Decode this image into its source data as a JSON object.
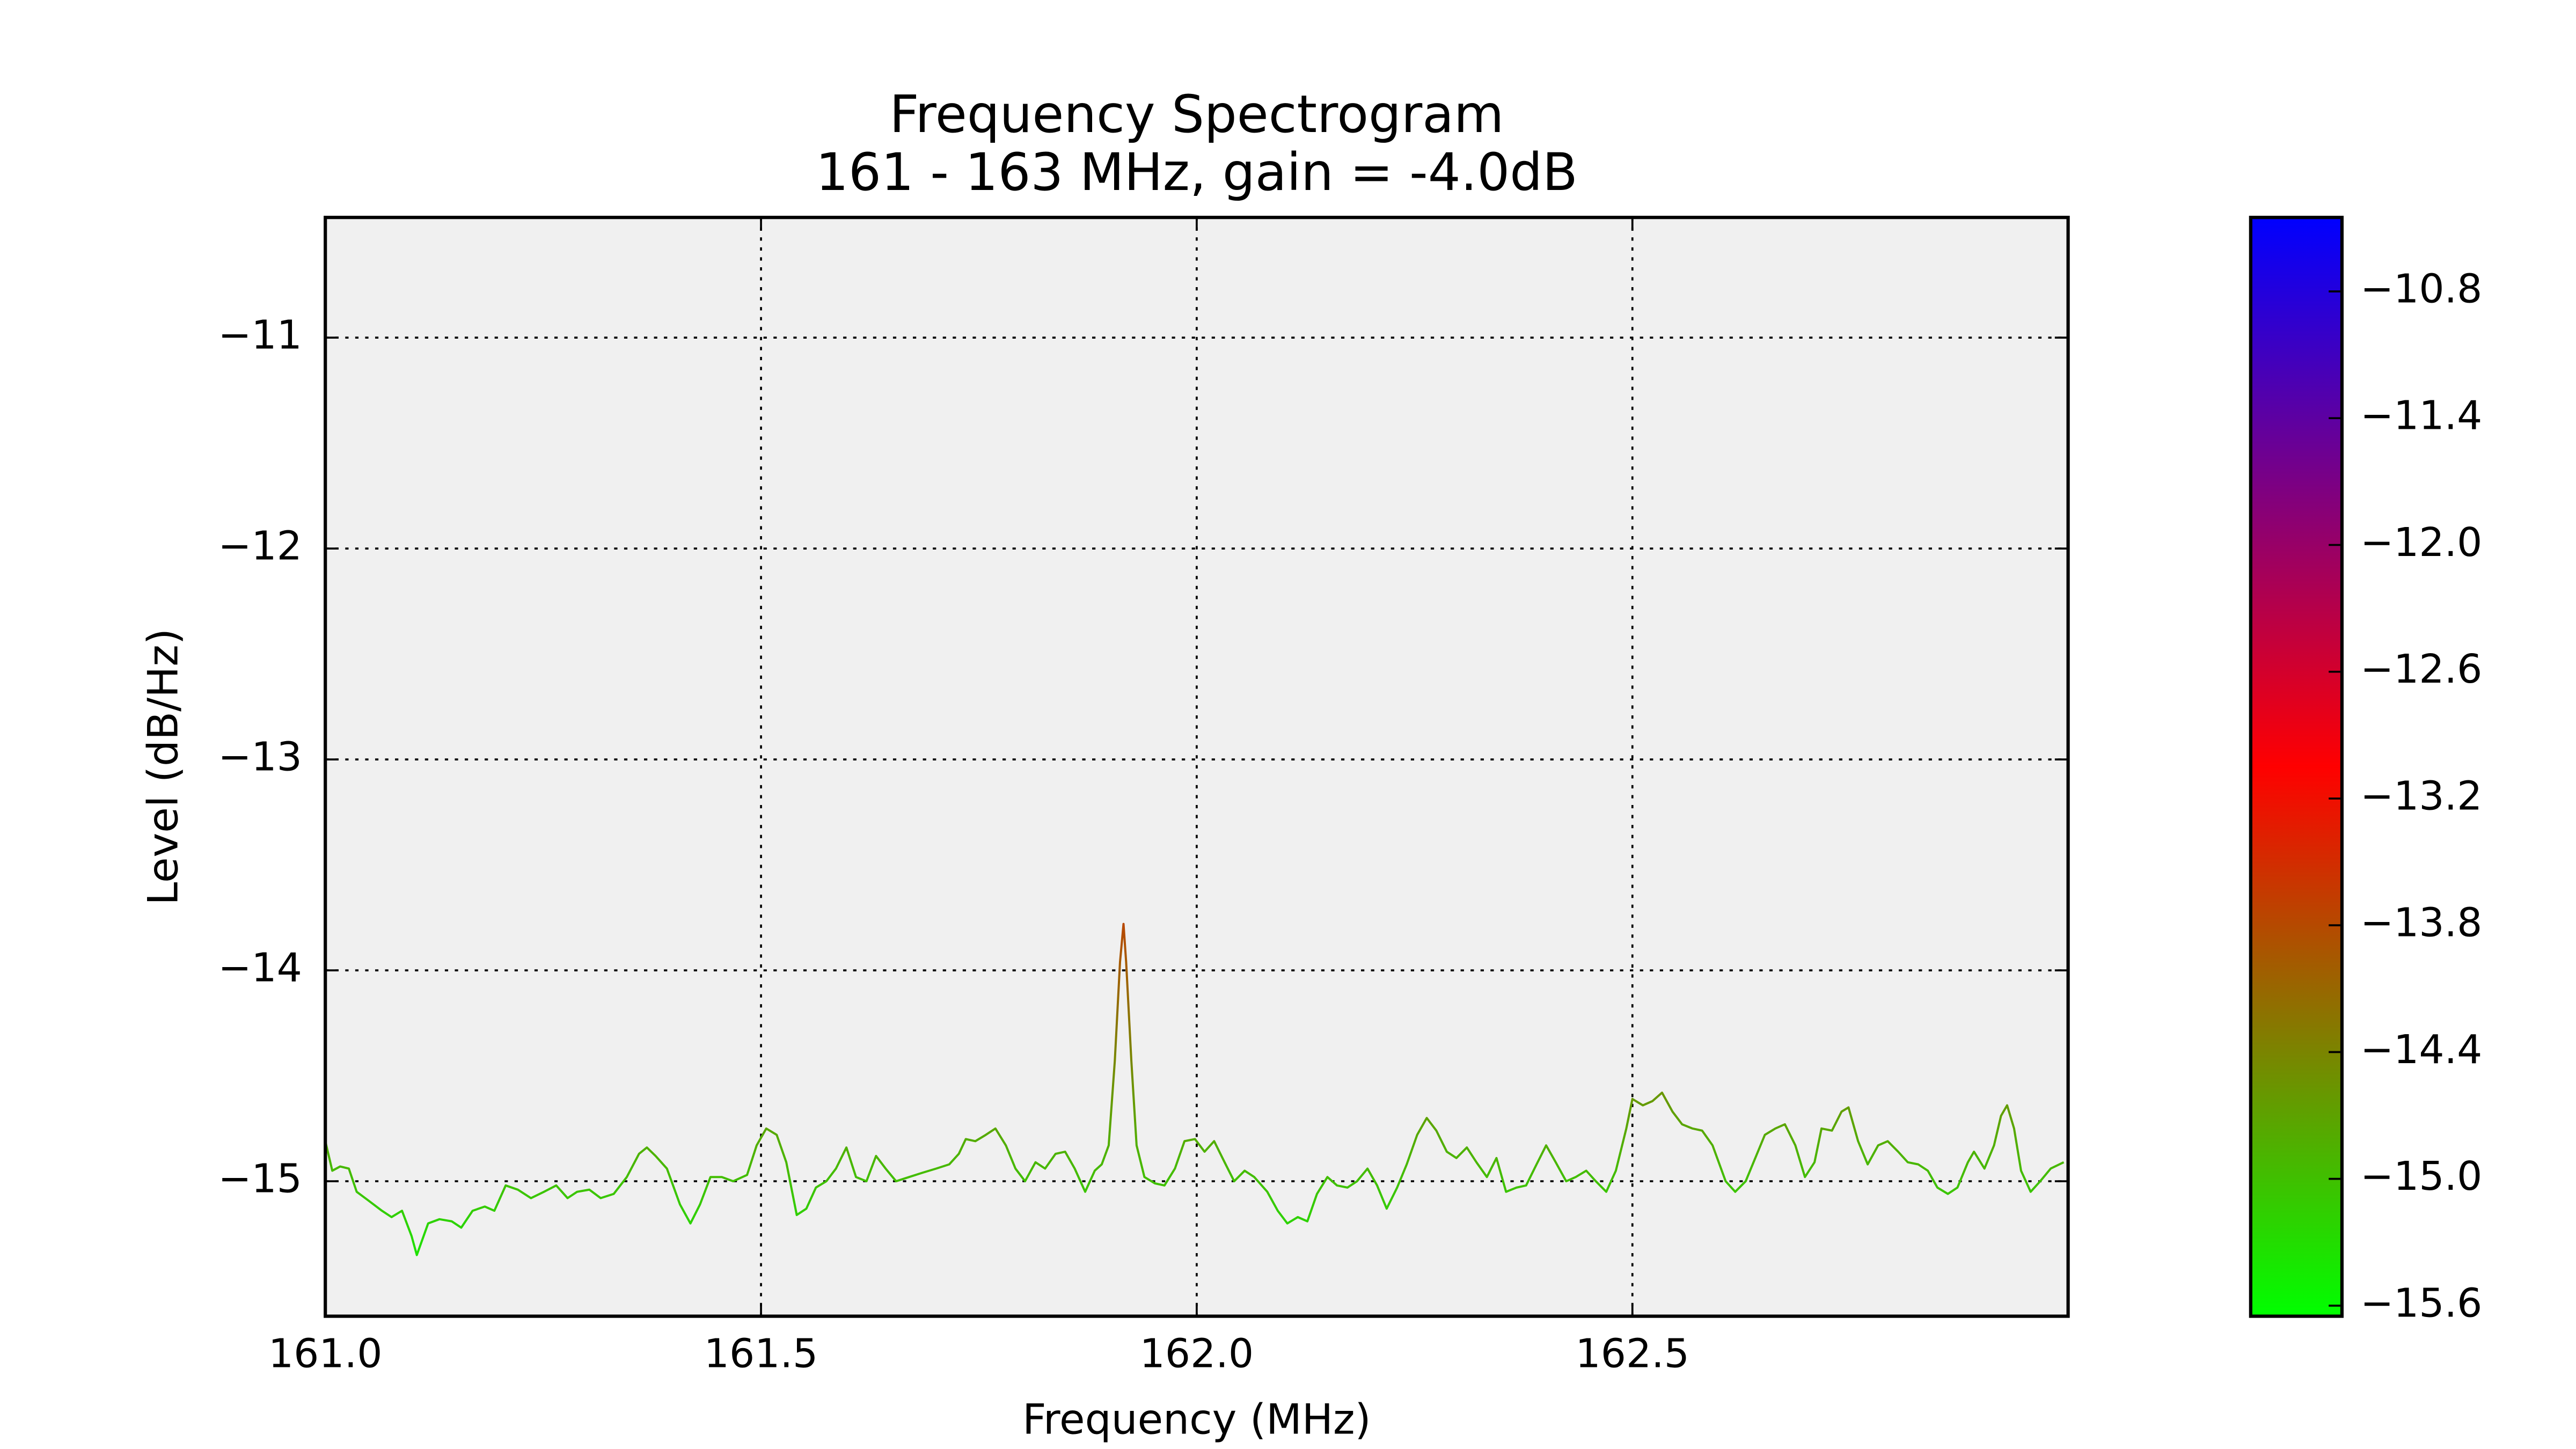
{
  "chart_data": {
    "type": "line",
    "title": "Frequency Spectrogram",
    "subtitle": "161 - 163 MHz, gain = -4.0dB",
    "xlabel": "Frequency (MHz)",
    "ylabel": "Level (dB/Hz)",
    "x": [
      161.0,
      161.008,
      161.017,
      161.027,
      161.036,
      161.049,
      161.065,
      161.076,
      161.088,
      161.099,
      161.105,
      161.118,
      161.131,
      161.145,
      161.156,
      161.169,
      161.183,
      161.194,
      161.207,
      161.221,
      161.236,
      161.251,
      161.265,
      161.278,
      161.289,
      161.303,
      161.316,
      161.331,
      161.346,
      161.36,
      161.369,
      161.379,
      161.392,
      161.407,
      161.419,
      161.43,
      161.442,
      161.455,
      161.468,
      161.484,
      161.495,
      161.506,
      161.518,
      161.529,
      161.541,
      161.552,
      161.563,
      161.575,
      161.586,
      161.598,
      161.609,
      161.621,
      161.632,
      161.643,
      161.655,
      161.67,
      161.685,
      161.701,
      161.716,
      161.727,
      161.735,
      161.746,
      161.758,
      161.769,
      161.781,
      161.792,
      161.803,
      161.815,
      161.826,
      161.838,
      161.849,
      161.86,
      161.872,
      161.883,
      161.891,
      161.899,
      161.906,
      161.912,
      161.916,
      161.919,
      161.925,
      161.931,
      161.94,
      161.952,
      161.963,
      161.975,
      161.986,
      161.998,
      162.009,
      162.02,
      162.032,
      162.043,
      162.055,
      162.066,
      162.081,
      162.093,
      162.104,
      162.116,
      162.127,
      162.138,
      162.15,
      162.161,
      162.173,
      162.184,
      162.196,
      162.207,
      162.218,
      162.23,
      162.241,
      162.253,
      162.264,
      162.275,
      162.287,
      162.298,
      162.31,
      162.321,
      162.333,
      162.344,
      162.355,
      162.367,
      162.378,
      162.39,
      162.401,
      162.412,
      162.424,
      162.435,
      162.447,
      162.458,
      162.47,
      162.481,
      162.493,
      162.5,
      162.512,
      162.523,
      162.534,
      162.546,
      162.557,
      162.569,
      162.58,
      162.592,
      162.607,
      162.618,
      162.63,
      162.641,
      162.652,
      162.664,
      162.675,
      162.687,
      162.698,
      162.709,
      162.717,
      162.729,
      162.74,
      162.748,
      162.759,
      162.77,
      162.782,
      162.793,
      162.805,
      162.816,
      162.828,
      162.839,
      162.85,
      162.862,
      162.873,
      162.885,
      162.892,
      162.904,
      162.915,
      162.923,
      162.93,
      162.938,
      162.946,
      162.957,
      162.968,
      162.98,
      162.995
    ],
    "values": [
      -14.81,
      -14.95,
      -14.93,
      -14.94,
      -15.05,
      -15.09,
      -15.14,
      -15.17,
      -15.14,
      -15.26,
      -15.35,
      -15.2,
      -15.18,
      -15.19,
      -15.22,
      -15.14,
      -15.12,
      -15.14,
      -15.02,
      -15.04,
      -15.08,
      -15.05,
      -15.02,
      -15.08,
      -15.05,
      -15.04,
      -15.08,
      -15.06,
      -14.98,
      -14.87,
      -14.84,
      -14.88,
      -14.94,
      -15.11,
      -15.2,
      -15.11,
      -14.98,
      -14.98,
      -15.0,
      -14.97,
      -14.83,
      -14.75,
      -14.78,
      -14.91,
      -15.16,
      -15.13,
      -15.03,
      -15.0,
      -14.94,
      -14.84,
      -14.98,
      -15.0,
      -14.88,
      -14.94,
      -15.0,
      -14.98,
      -14.96,
      -14.94,
      -14.92,
      -14.87,
      -14.8,
      -14.81,
      -14.78,
      -14.75,
      -14.83,
      -14.94,
      -15.0,
      -14.91,
      -14.94,
      -14.87,
      -14.86,
      -14.94,
      -15.05,
      -14.95,
      -14.92,
      -14.83,
      -14.43,
      -13.96,
      -13.78,
      -13.96,
      -14.43,
      -14.83,
      -14.98,
      -15.01,
      -15.02,
      -14.94,
      -14.81,
      -14.8,
      -14.86,
      -14.81,
      -14.91,
      -15.0,
      -14.95,
      -14.98,
      -15.05,
      -15.14,
      -15.2,
      -15.17,
      -15.19,
      -15.06,
      -14.98,
      -15.02,
      -15.03,
      -15.0,
      -14.94,
      -15.02,
      -15.13,
      -15.03,
      -14.92,
      -14.78,
      -14.7,
      -14.76,
      -14.86,
      -14.89,
      -14.84,
      -14.91,
      -14.98,
      -14.89,
      -15.05,
      -15.03,
      -15.02,
      -14.92,
      -14.83,
      -14.91,
      -15.0,
      -14.98,
      -14.95,
      -15.0,
      -15.05,
      -14.95,
      -14.75,
      -14.61,
      -14.64,
      -14.62,
      -14.58,
      -14.67,
      -14.73,
      -14.75,
      -14.76,
      -14.83,
      -15.0,
      -15.05,
      -15.0,
      -14.89,
      -14.78,
      -14.75,
      -14.73,
      -14.83,
      -14.98,
      -14.91,
      -14.75,
      -14.76,
      -14.67,
      -14.65,
      -14.81,
      -14.92,
      -14.83,
      -14.81,
      -14.86,
      -14.91,
      -14.92,
      -14.95,
      -15.03,
      -15.06,
      -15.03,
      -14.91,
      -14.86,
      -14.94,
      -14.83,
      -14.69,
      -14.64,
      -14.75,
      -14.95,
      -15.05,
      -15.0,
      -14.94,
      -14.91
    ],
    "xlim": [
      161,
      163
    ],
    "ylim": [
      -15.64,
      -10.43
    ],
    "xticks": [
      {
        "value": 161,
        "label": "161.0"
      },
      161.5,
      {
        "value": 162,
        "label": "162.0"
      },
      162.5
    ],
    "yticks": [
      {
        "value": -11,
        "label": "−11"
      },
      {
        "value": -12,
        "label": "−12"
      },
      {
        "value": -13,
        "label": "−13"
      },
      {
        "value": -14,
        "label": "−14"
      },
      {
        "value": -15,
        "label": "−15"
      }
    ],
    "grid": true,
    "background": "#f0f0f0",
    "colorbar": {
      "lim": [
        -15.65,
        -10.45
      ],
      "colors": [
        "#00ff00",
        "#ff0000",
        "#0000ff"
      ],
      "ticks": [
        {
          "value": -10.8,
          "label": "−10.8"
        },
        {
          "value": -11.4,
          "label": "−11.4"
        },
        {
          "value": -12.0,
          "label": "−12.0"
        },
        {
          "value": -12.6,
          "label": "−12.6"
        },
        {
          "value": -13.2,
          "label": "−13.2"
        },
        {
          "value": -13.8,
          "label": "−13.8"
        },
        {
          "value": -14.4,
          "label": "−14.4"
        },
        {
          "value": -15.0,
          "label": "−15.0"
        },
        {
          "value": -15.6,
          "label": "−15.6"
        }
      ]
    }
  }
}
